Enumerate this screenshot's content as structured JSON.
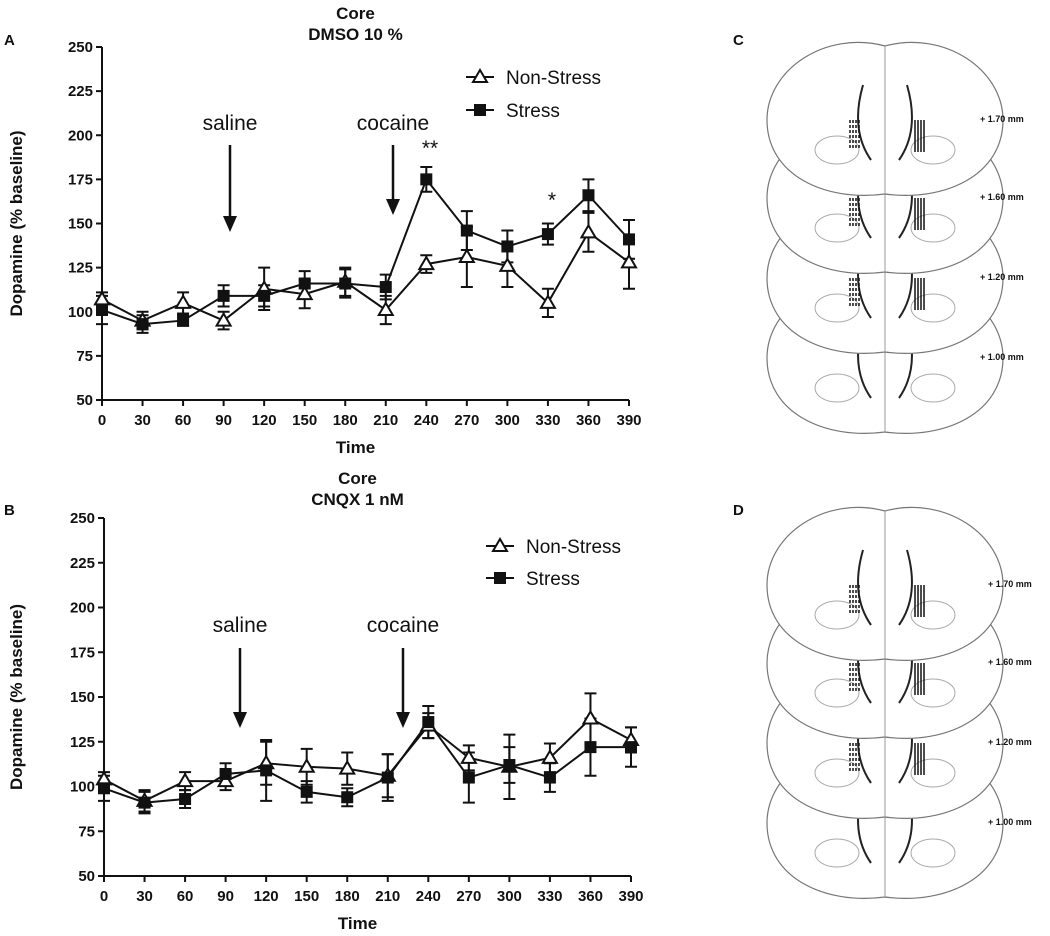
{
  "chart_data": [
    {
      "type": "line",
      "panel": "A",
      "title": "Core",
      "subtitle": "DMSO 10 %",
      "x_label": "Time",
      "y_label": "Dopamine (% baseline)",
      "x": [
        0,
        30,
        60,
        90,
        120,
        150,
        180,
        210,
        240,
        270,
        300,
        330,
        360,
        390
      ],
      "xlim": [
        0,
        390
      ],
      "xticks": [
        0,
        30,
        60,
        90,
        120,
        150,
        180,
        210,
        240,
        270,
        300,
        330,
        360,
        390
      ],
      "ylim": [
        50,
        250
      ],
      "yticks": [
        50,
        75,
        100,
        125,
        150,
        175,
        200,
        225,
        250
      ],
      "legend": "upper right",
      "series": [
        {
          "name": "Non-Stress",
          "color": "#111111",
          "marker": "open-triangle",
          "values": [
            107,
            95,
            105,
            95,
            113,
            110,
            117,
            101,
            127,
            131,
            126,
            105,
            145,
            128
          ],
          "errors": [
            4,
            5,
            6,
            5,
            12,
            8,
            8,
            8,
            5,
            17,
            12,
            8,
            11,
            15
          ]
        },
        {
          "name": "Stress",
          "color": "#111111",
          "marker": "filled-square",
          "values": [
            101,
            93,
            95,
            109,
            109,
            116,
            116,
            114,
            175,
            146,
            137,
            144,
            166,
            141
          ],
          "errors": [
            8,
            5,
            3,
            6,
            6,
            7,
            8,
            7,
            7,
            11,
            9,
            6,
            9,
            11
          ]
        }
      ],
      "annotations": [
        {
          "text": "saline"
        },
        {
          "text": "cocaine"
        },
        {
          "text": "**"
        },
        {
          "text": "*"
        }
      ]
    },
    {
      "type": "line",
      "panel": "B",
      "title": "Core",
      "subtitle": "CNQX 1 nM",
      "x_label": "Time",
      "y_label": "Dopamine (% baseline)",
      "x": [
        0,
        30,
        60,
        90,
        120,
        150,
        180,
        210,
        240,
        270,
        300,
        330,
        360,
        390
      ],
      "xlim": [
        0,
        390
      ],
      "xticks": [
        0,
        30,
        60,
        90,
        120,
        150,
        180,
        210,
        240,
        270,
        300,
        330,
        360,
        390
      ],
      "ylim": [
        50,
        250
      ],
      "yticks": [
        50,
        75,
        100,
        125,
        150,
        175,
        200,
        225,
        250
      ],
      "legend": "upper right",
      "series": [
        {
          "name": "Non-Stress",
          "color": "#111111",
          "marker": "open-triangle",
          "values": [
            104,
            92,
            103,
            103,
            113,
            111,
            110,
            106,
            134,
            116,
            111,
            116,
            138,
            126
          ],
          "errors": [
            4,
            6,
            5,
            5,
            12,
            10,
            9,
            12,
            7,
            7,
            18,
            8,
            14,
            7
          ]
        },
        {
          "name": "Stress",
          "color": "#111111",
          "marker": "filled-square",
          "values": [
            99,
            91,
            93,
            107,
            109,
            97,
            94,
            105,
            136,
            105,
            112,
            105,
            122,
            122
          ],
          "errors": [
            7,
            6,
            5,
            6,
            17,
            6,
            5,
            13,
            9,
            14,
            10,
            8,
            16,
            11
          ]
        }
      ],
      "annotations": [
        {
          "text": "saline"
        },
        {
          "text": "cocaine"
        }
      ]
    }
  ],
  "diagrams": [
    {
      "panel": "C",
      "levels": [
        "+ 1.70 mm",
        "+ 1.60 mm",
        "+ 1.20 mm",
        "+ 1.00 mm"
      ]
    },
    {
      "panel": "D",
      "levels": [
        "+ 1.70 mm",
        "+ 1.60 mm",
        "+ 1.20 mm",
        "+ 1.00 mm"
      ]
    }
  ]
}
